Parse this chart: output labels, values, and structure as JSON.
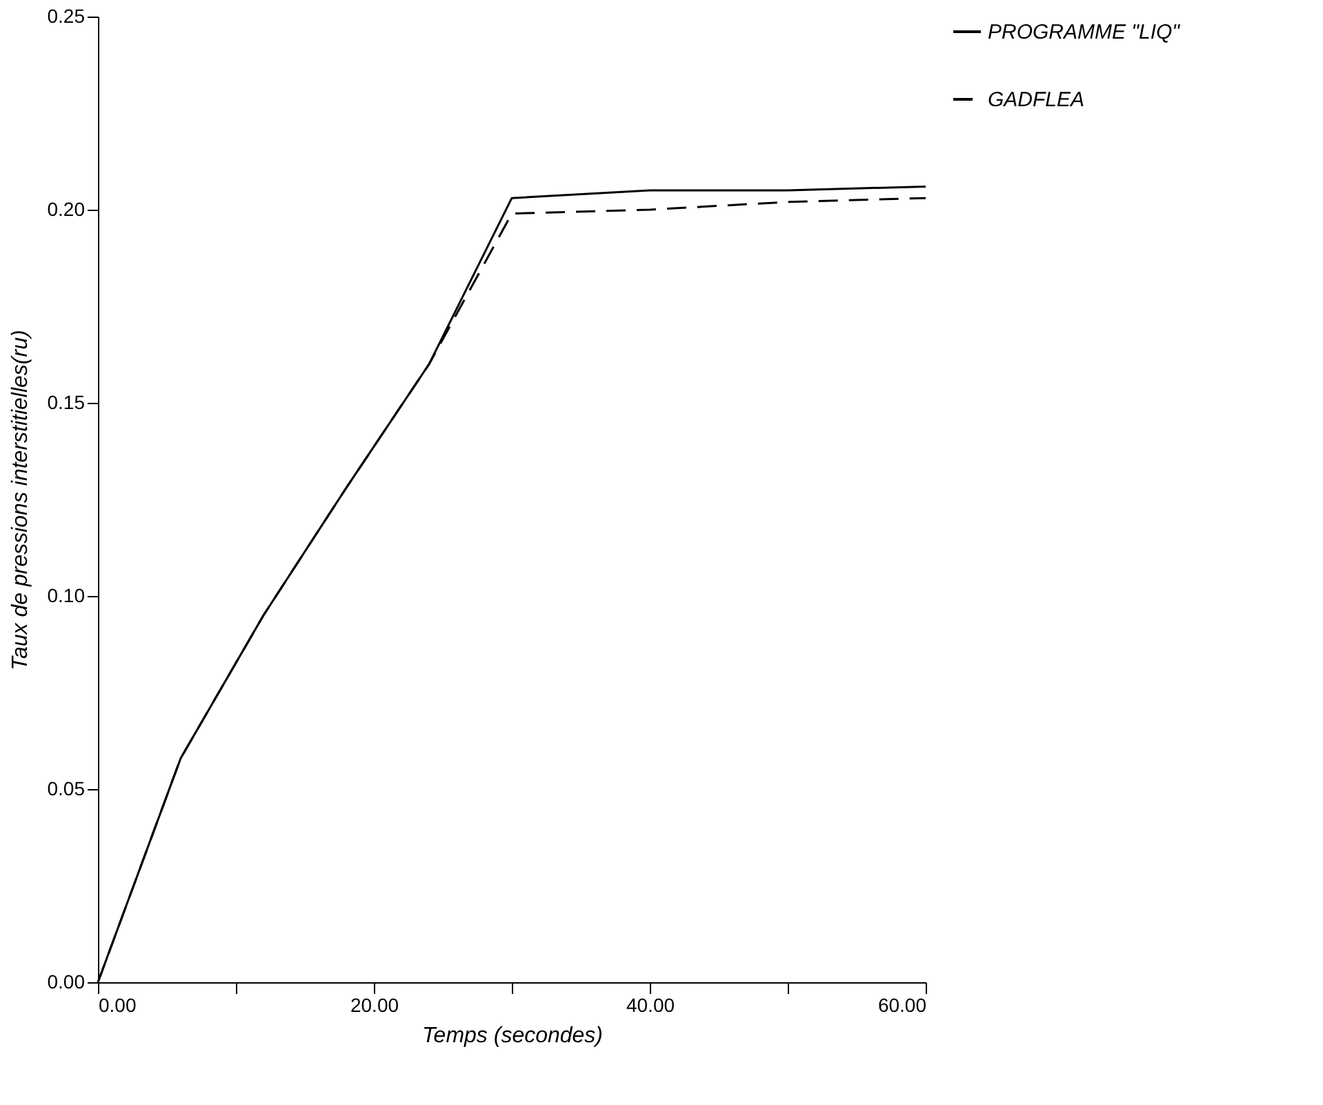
{
  "chart_data": {
    "type": "line",
    "xlabel": "Temps (secondes)",
    "ylabel": "Taux de pressions interstitielles(ru)",
    "xlim": [
      0,
      60
    ],
    "ylim": [
      0,
      0.25
    ],
    "xticks": [
      {
        "value": 0,
        "label": "0.00"
      },
      {
        "value": 10,
        "label": null
      },
      {
        "value": 20,
        "label": "20.00"
      },
      {
        "value": 30,
        "label": null
      },
      {
        "value": 40,
        "label": "40.00"
      },
      {
        "value": 50,
        "label": null
      },
      {
        "value": 60,
        "label": "60.00"
      }
    ],
    "yticks": [
      {
        "value": 0,
        "label": "0.00"
      },
      {
        "value": 0.05,
        "label": "0.05"
      },
      {
        "value": 0.1,
        "label": "0.10"
      },
      {
        "value": 0.15,
        "label": "0.15"
      },
      {
        "value": 0.2,
        "label": "0.20"
      },
      {
        "value": 0.25,
        "label": "0.25"
      }
    ],
    "grid": false,
    "legend": "right",
    "marker": "none",
    "series": [
      {
        "name": "PROGRAMME \"LIQ\"",
        "color": "#000000",
        "line_style": "solid",
        "x": [
          0,
          6,
          12,
          18,
          24,
          30,
          40,
          50,
          60
        ],
        "values": [
          0,
          0.058,
          0.095,
          0.128,
          0.16,
          0.203,
          0.205,
          0.205,
          0.206
        ]
      },
      {
        "name": "GADFLEA",
        "color": "#000000",
        "line_style": "dashed",
        "x": [
          0,
          6,
          12,
          18,
          24,
          30,
          40,
          50,
          60
        ],
        "values": [
          0,
          0.058,
          0.095,
          0.128,
          0.16,
          0.199,
          0.2,
          0.202,
          0.203
        ]
      }
    ]
  }
}
